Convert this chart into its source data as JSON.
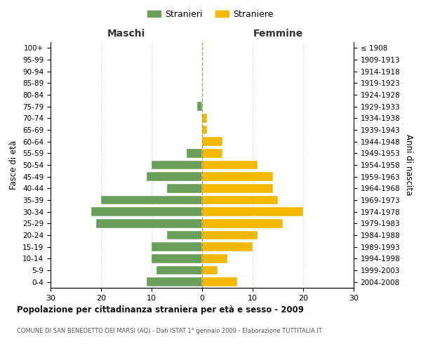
{
  "age_groups": [
    "0-4",
    "5-9",
    "10-14",
    "15-19",
    "20-24",
    "25-29",
    "30-34",
    "35-39",
    "40-44",
    "45-49",
    "50-54",
    "55-59",
    "60-64",
    "65-69",
    "70-74",
    "75-79",
    "80-84",
    "85-89",
    "90-94",
    "95-99",
    "100+"
  ],
  "birth_years": [
    "2004-2008",
    "1999-2003",
    "1994-1998",
    "1989-1993",
    "1984-1988",
    "1979-1983",
    "1974-1978",
    "1969-1973",
    "1964-1968",
    "1959-1963",
    "1954-1958",
    "1949-1953",
    "1944-1948",
    "1939-1943",
    "1934-1938",
    "1929-1933",
    "1924-1928",
    "1919-1923",
    "1914-1918",
    "1909-1913",
    "≤ 1908"
  ],
  "maschi": [
    11,
    9,
    10,
    10,
    7,
    21,
    22,
    20,
    7,
    11,
    10,
    3,
    0,
    0,
    0,
    1,
    0,
    0,
    0,
    0,
    0
  ],
  "femmine": [
    7,
    3,
    5,
    10,
    11,
    16,
    20,
    15,
    14,
    14,
    11,
    4,
    4,
    1,
    1,
    0,
    0,
    0,
    0,
    0,
    0
  ],
  "maschi_color": "#6a9f5b",
  "femmine_color": "#f5b800",
  "background_color": "#ffffff",
  "grid_color": "#cccccc",
  "center_line_color": "#999966",
  "xlim": 30,
  "title": "Popolazione per cittadinanza straniera per età e sesso - 2009",
  "subtitle": "COMUNE DI SAN BENEDETTO DEI MARSI (AQ) - Dati ISTAT 1° gennaio 2009 - Elaborazione TUTTITALIA.IT",
  "ylabel_left": "Fasce di età",
  "ylabel_right": "Anni di nascita",
  "legend_stranieri": "Stranieri",
  "legend_straniere": "Straniere",
  "maschi_label": "Maschi",
  "femmine_label": "Femmine"
}
